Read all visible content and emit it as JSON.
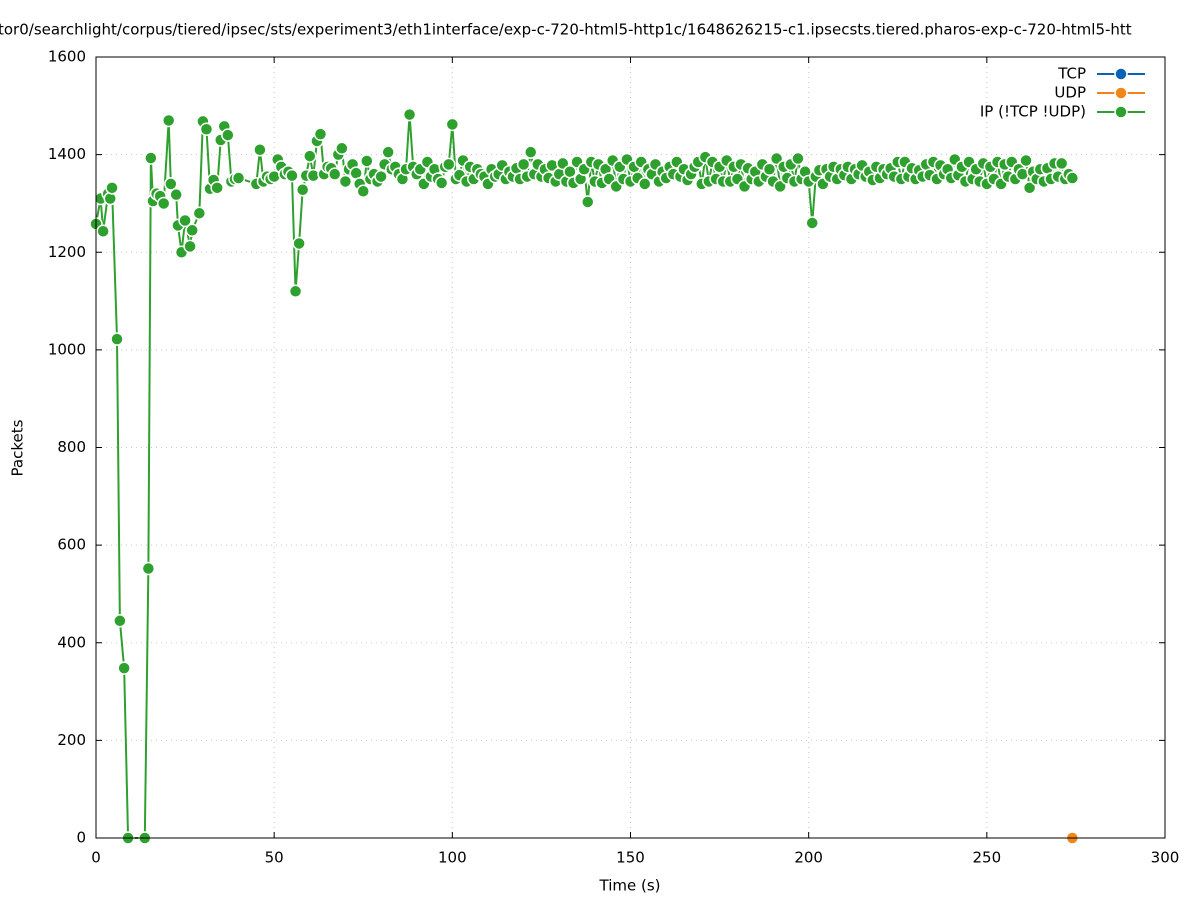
{
  "chart_data": {
    "type": "line",
    "title": "tor0/searchlight/corpus/tiered/ipsec/sts/experiment3/eth1interface/exp-c-720-html5-http1c/1648626215-c1.ipsecsts.tiered.pharos-exp-c-720-html5-htt",
    "x_label": "Time (s)",
    "y_label": "Packets",
    "xlim": [
      0,
      300
    ],
    "ylim": [
      0,
      1600
    ],
    "xticks": [
      0,
      50,
      100,
      150,
      200,
      250,
      300
    ],
    "yticks": [
      0,
      200,
      400,
      600,
      800,
      1000,
      1200,
      1400,
      1600
    ],
    "grid": true,
    "legend": "top-right",
    "series": [
      {
        "name": "TCP",
        "color": "#0a62b4",
        "x": [],
        "values": []
      },
      {
        "name": "UDP",
        "color": "#f28518",
        "x": [
          274
        ],
        "values": [
          0
        ]
      },
      {
        "name": "IP (!TCP  !UDP)",
        "color": "#2ea02e",
        "x": [
          0,
          1.3,
          2,
          3.4,
          4,
          4.5,
          5.9,
          6.7,
          7.9,
          9,
          13.7,
          14.7,
          15.4,
          16,
          17,
          18,
          19,
          20.4,
          21,
          22.5,
          23,
          24,
          25,
          26.4,
          27,
          29,
          30,
          31,
          32,
          33,
          34,
          35,
          36,
          37,
          38,
          39,
          40,
          45,
          46,
          47,
          48,
          49,
          50,
          51,
          52,
          53,
          54,
          55,
          56,
          57,
          58,
          59,
          60,
          61,
          62,
          63,
          64,
          65,
          66,
          67,
          68,
          69,
          70,
          71,
          72,
          73,
          74,
          75,
          76,
          77,
          78,
          79,
          80,
          81,
          82,
          83,
          84,
          85,
          86,
          87,
          88,
          89,
          90,
          91,
          92,
          93,
          94,
          95,
          96,
          97,
          98,
          99,
          100,
          101,
          102,
          103,
          104,
          105,
          106,
          107,
          108,
          109,
          110,
          111,
          112,
          113,
          114,
          115,
          116,
          117,
          118,
          119,
          120,
          121,
          122,
          123,
          124,
          125,
          126,
          127,
          128,
          129,
          130,
          131,
          132,
          133,
          134,
          135,
          136,
          137,
          138,
          139,
          140,
          141,
          142,
          143,
          144,
          145,
          146,
          147,
          148,
          149,
          150,
          151,
          152,
          153,
          154,
          155,
          156,
          157,
          158,
          159,
          160,
          161,
          162,
          163,
          164,
          165,
          166,
          167,
          168,
          169,
          170,
          171,
          172,
          173,
          174,
          175,
          176,
          177,
          178,
          179,
          180,
          181,
          182,
          183,
          184,
          185,
          186,
          187,
          188,
          189,
          190,
          191,
          192,
          193,
          194,
          195,
          196,
          197,
          198,
          199,
          200,
          201,
          202,
          203,
          204,
          205,
          206,
          207,
          208,
          209,
          210,
          211,
          212,
          213,
          214,
          215,
          216,
          217,
          218,
          219,
          220,
          221,
          222,
          223,
          224,
          225,
          226,
          227,
          228,
          229,
          230,
          231,
          232,
          233,
          234,
          235,
          236,
          237,
          238,
          239,
          240,
          241,
          242,
          243,
          244,
          245,
          246,
          247,
          248,
          249,
          250,
          251,
          252,
          253,
          254,
          255,
          256,
          257,
          258,
          259,
          260,
          261,
          262,
          263,
          264,
          265,
          266,
          267,
          268,
          269,
          270,
          271,
          272,
          273,
          274
        ],
        "values": [
          1258,
          1310,
          1243,
          1320,
          1310,
          1332,
          1022,
          445,
          348,
          0,
          0,
          552,
          1393,
          1305,
          1320,
          1315,
          1300,
          1470,
          1340,
          1318,
          1255,
          1200,
          1265,
          1212,
          1245,
          1280,
          1468,
          1452,
          1330,
          1348,
          1332,
          1430,
          1458,
          1440,
          1345,
          1350,
          1352,
          1340,
          1410,
          1345,
          1355,
          1350,
          1355,
          1390,
          1375,
          1360,
          1365,
          1357,
          1120,
          1218,
          1328,
          1357,
          1397,
          1357,
          1428,
          1442,
          1360,
          1375,
          1372,
          1360,
          1400,
          1413,
          1345,
          1370,
          1380,
          1362,
          1340,
          1325,
          1387,
          1350,
          1360,
          1345,
          1355,
          1380,
          1405,
          1370,
          1375,
          1360,
          1350,
          1370,
          1482,
          1375,
          1360,
          1370,
          1340,
          1385,
          1355,
          1370,
          1350,
          1342,
          1375,
          1380,
          1462,
          1350,
          1358,
          1388,
          1345,
          1375,
          1350,
          1370,
          1360,
          1355,
          1340,
          1370,
          1355,
          1360,
          1378,
          1350,
          1365,
          1355,
          1372,
          1350,
          1380,
          1355,
          1405,
          1360,
          1380,
          1355,
          1370,
          1352,
          1378,
          1345,
          1360,
          1382,
          1345,
          1365,
          1342,
          1385,
          1350,
          1370,
          1303,
          1385,
          1345,
          1380,
          1342,
          1370,
          1350,
          1388,
          1335,
          1375,
          1350,
          1390,
          1345,
          1375,
          1352,
          1385,
          1340,
          1370,
          1360,
          1380,
          1345,
          1365,
          1352,
          1375,
          1360,
          1385,
          1355,
          1370,
          1348,
          1360,
          1375,
          1385,
          1340,
          1395,
          1345,
          1385,
          1350,
          1375,
          1345,
          1388,
          1345,
          1375,
          1350,
          1380,
          1335,
          1372,
          1350,
          1365,
          1345,
          1380,
          1355,
          1370,
          1345,
          1392,
          1335,
          1375,
          1352,
          1380,
          1345,
          1392,
          1350,
          1365,
          1345,
          1260,
          1355,
          1368,
          1340,
          1370,
          1355,
          1375,
          1350,
          1370,
          1358,
          1375,
          1350,
          1370,
          1360,
          1378,
          1355,
          1365,
          1348,
          1375,
          1352,
          1370,
          1360,
          1372,
          1355,
          1385,
          1350,
          1385,
          1355,
          1372,
          1350,
          1368,
          1355,
          1380,
          1358,
          1385,
          1350,
          1378,
          1360,
          1370,
          1352,
          1390,
          1358,
          1375,
          1345,
          1385,
          1350,
          1370,
          1345,
          1382,
          1340,
          1375,
          1350,
          1385,
          1340,
          1380,
          1355,
          1385,
          1350,
          1370,
          1360,
          1388,
          1332,
          1365,
          1350,
          1370,
          1345,
          1372,
          1350,
          1382,
          1355,
          1382,
          1350,
          1360,
          1352
        ]
      }
    ]
  }
}
